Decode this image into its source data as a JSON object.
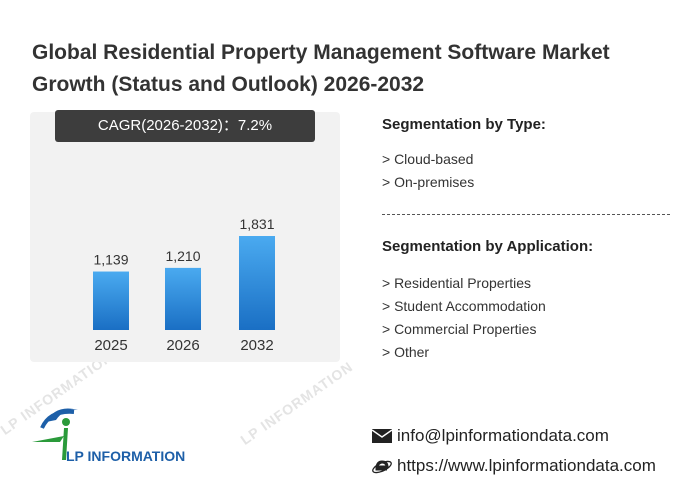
{
  "title": "Global Residential Property Management Software Market Growth (Status and Outlook) 2026-2032",
  "cagr_label": "CAGR(2026-2032)：7.2%",
  "chart_data": {
    "type": "bar",
    "categories": [
      "2025",
      "2026",
      "2032"
    ],
    "values": [
      1139,
      1210,
      1831
    ],
    "value_labels": [
      "1,139",
      "1,210",
      "1,831"
    ],
    "title": "",
    "xlabel": "",
    "ylabel": "",
    "ylim": [
      0,
      2000
    ],
    "grid": false,
    "bar_color": "#2e8ee0"
  },
  "segmentation_type": {
    "heading": "Segmentation by Type:",
    "items": [
      "> Cloud-based",
      "> On-premises"
    ]
  },
  "segmentation_application": {
    "heading": "Segmentation by Application:",
    "items": [
      "> Residential Properties",
      "> Student Accommodation",
      "> Commercial Properties",
      "> Other"
    ]
  },
  "logo": {
    "text": "LP INFORMATION",
    "icon": "lp-information-logo-icon"
  },
  "contact": {
    "email": "info@lpinformationdata.com",
    "website": "https://www.lpinformationdata.com",
    "email_icon": "envelope-icon",
    "web_icon": "internet-explorer-icon"
  },
  "watermark": "LP INFORMATION"
}
